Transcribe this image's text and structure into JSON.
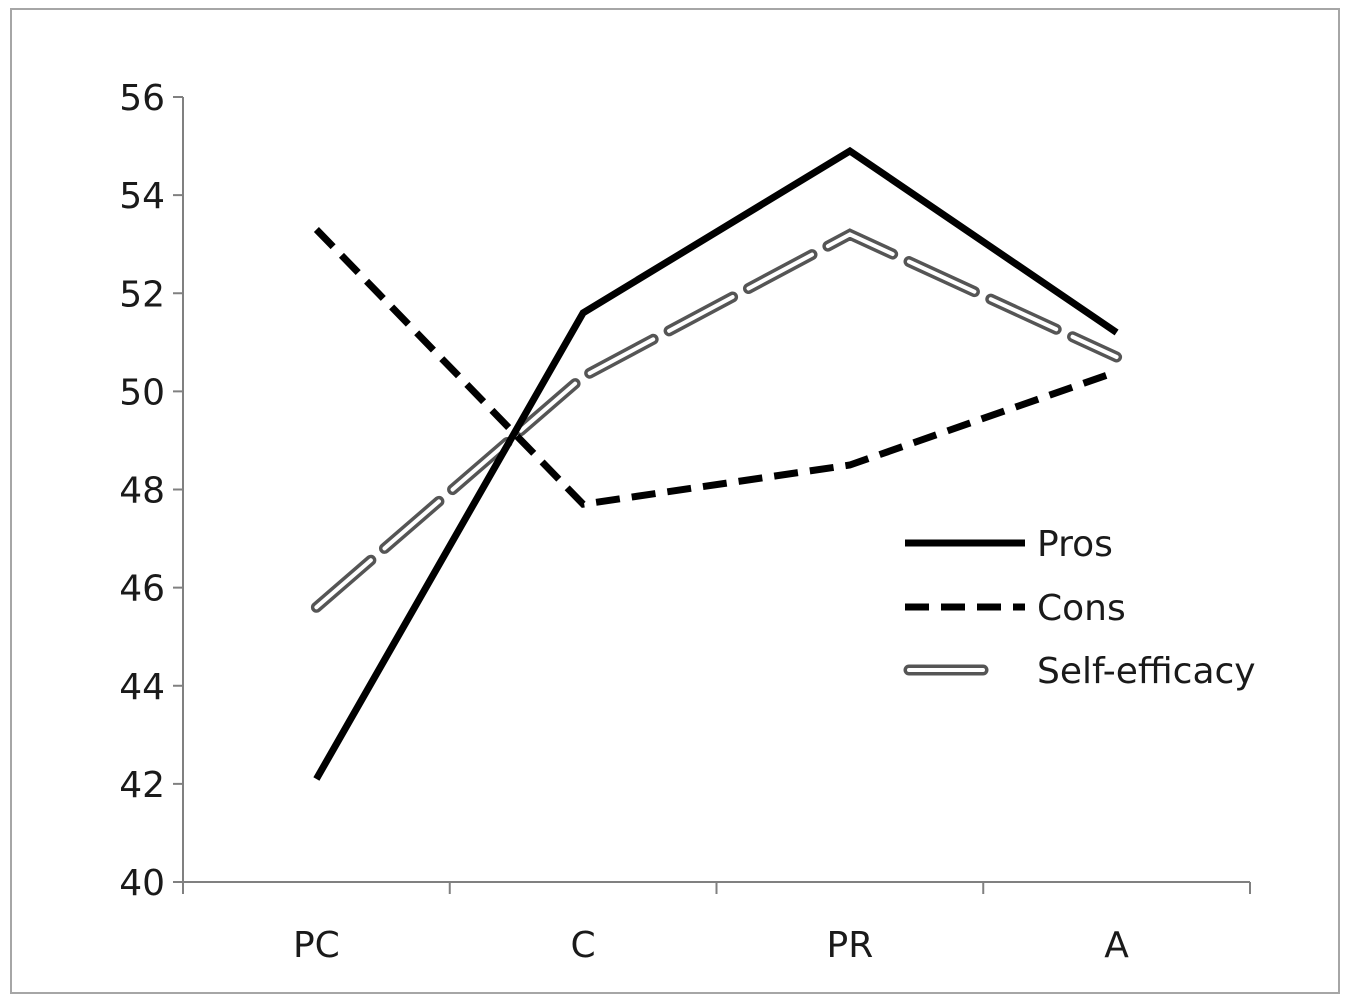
{
  "chart_data": {
    "type": "line",
    "title": "",
    "xlabel": "",
    "ylabel": "",
    "categories": [
      "PC",
      "C",
      "PR",
      "A"
    ],
    "ylim": [
      40,
      56
    ],
    "yticks": [
      40,
      42,
      44,
      46,
      48,
      50,
      52,
      54,
      56
    ],
    "grid": false,
    "legend_position": "right",
    "series": [
      {
        "name": "Pros",
        "values": [
          42.1,
          51.6,
          54.9,
          51.2
        ],
        "style": "solid",
        "color": "#000000"
      },
      {
        "name": "Cons",
        "values": [
          53.3,
          47.7,
          48.5,
          50.4
        ],
        "style": "dashed",
        "color": "#000000"
      },
      {
        "name": "Self-efficacy",
        "values": [
          45.6,
          50.3,
          53.2,
          50.7
        ],
        "style": "double-dashed",
        "color": "#000000"
      }
    ]
  }
}
